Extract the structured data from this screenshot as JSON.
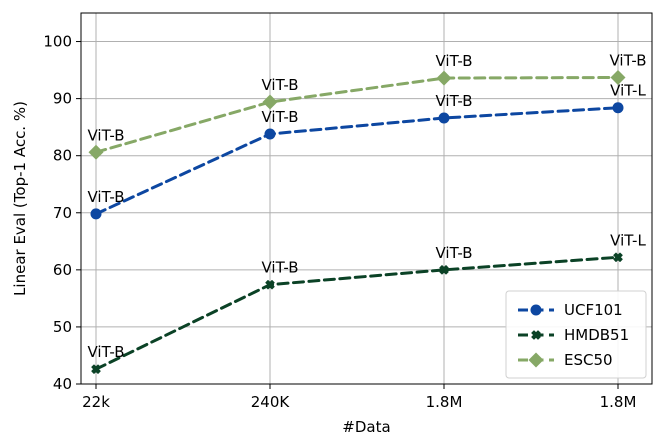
{
  "chart_data": {
    "type": "line",
    "title": "",
    "xlabel": "#Data",
    "ylabel": "Linear Eval (Top-1 Acc. %)",
    "categories": [
      "22k",
      "240K",
      "1.8M",
      "1.8M"
    ],
    "ylim": [
      40,
      105
    ],
    "yticks": [
      40,
      50,
      60,
      70,
      80,
      90,
      100
    ],
    "grid": true,
    "legend_position": "bottom-right",
    "series": [
      {
        "name": "UCF101",
        "values": [
          69.8,
          83.8,
          86.6,
          88.4
        ],
        "point_labels": [
          "ViT-B",
          "ViT-B",
          "ViT-B",
          "ViT-L"
        ],
        "color": "#0d47a1",
        "marker": "circle"
      },
      {
        "name": "HMDB51",
        "values": [
          42.6,
          57.4,
          60.0,
          62.2
        ],
        "point_labels": [
          "ViT-B",
          "ViT-B",
          "ViT-B",
          "ViT-L"
        ],
        "color": "#0b4226",
        "marker": "x"
      },
      {
        "name": "ESC50",
        "values": [
          80.6,
          89.4,
          93.6,
          93.7
        ],
        "point_labels": [
          "ViT-B",
          "ViT-B",
          "ViT-B",
          "ViT-B"
        ],
        "color": "#86a866",
        "marker": "diamond"
      }
    ]
  }
}
